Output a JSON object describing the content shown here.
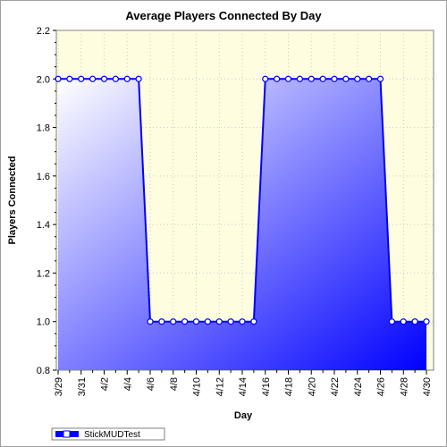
{
  "chart_data": {
    "type": "area",
    "title": "Average Players Connected By Day",
    "xlabel": "Day",
    "ylabel": "Players Connected",
    "ylim": [
      0.8,
      2.2
    ],
    "yticks": [
      "0.8",
      "1.0",
      "1.2",
      "1.4",
      "1.6",
      "1.8",
      "2.0",
      "2.2"
    ],
    "x": [
      "3/29",
      "3/30",
      "3/31",
      "4/1",
      "4/2",
      "4/3",
      "4/4",
      "4/5",
      "4/6",
      "4/7",
      "4/8",
      "4/9",
      "4/10",
      "4/11",
      "4/12",
      "4/13",
      "4/14",
      "4/15",
      "4/16",
      "4/17",
      "4/18",
      "4/19",
      "4/20",
      "4/21",
      "4/22",
      "4/23",
      "4/24",
      "4/25",
      "4/26",
      "4/27",
      "4/28",
      "4/29",
      "4/30"
    ],
    "x_tick_labels": [
      "3/29",
      "3/31",
      "4/2",
      "4/4",
      "4/6",
      "4/8",
      "4/10",
      "4/12",
      "4/14",
      "4/16",
      "4/18",
      "4/20",
      "4/22",
      "4/24",
      "4/26",
      "4/28",
      "4/30"
    ],
    "series": [
      {
        "name": "StickMUDTest",
        "values": [
          2.0,
          2.0,
          2.0,
          2.0,
          2.0,
          2.0,
          2.0,
          2.0,
          1.0,
          1.0,
          1.0,
          1.0,
          1.0,
          1.0,
          1.0,
          1.0,
          1.0,
          1.0,
          2.0,
          2.0,
          2.0,
          2.0,
          2.0,
          2.0,
          2.0,
          2.0,
          2.0,
          2.0,
          2.0,
          1.0,
          1.0,
          1.0,
          1.0
        ]
      }
    ],
    "grid": true,
    "legend_position": "bottom-left",
    "colors": {
      "plot_background": "#fffde0",
      "series_line": "#0000ff",
      "fill_light": "#ffffff",
      "fill_dark": "#0000ff",
      "grid": "#c8c8c8"
    }
  }
}
